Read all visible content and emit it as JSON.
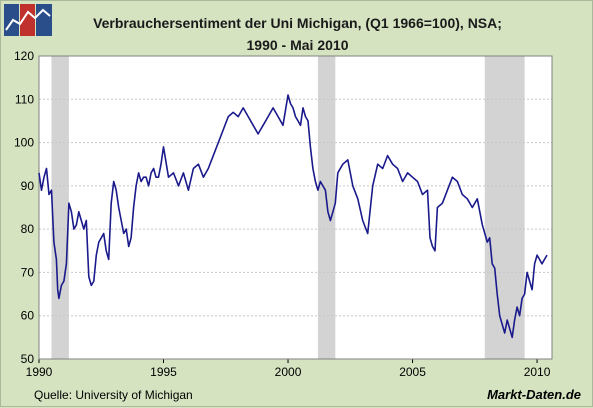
{
  "title_line1": "Verbrauchersentiment der Uni Michigan, (Q1 1966=100), NSA;",
  "title_line2": "1990 - Mai 2010",
  "source": "Quelle: University of Michigan",
  "brand": "Markt-Daten.de",
  "colors": {
    "background": "#d5e3c1",
    "plot_area": "#ffffff",
    "grid": "#c8c8c8",
    "line": "#1a1a8c",
    "recession": "#d3d3d3"
  },
  "chart_data": {
    "type": "line",
    "x_unit": "year",
    "xlim": [
      1990.0,
      2010.6
    ],
    "ylim": [
      50,
      120
    ],
    "x_ticks": [
      1990,
      1995,
      2000,
      2005,
      2010
    ],
    "x_tick_labels": [
      "1990",
      "1995",
      "2000",
      "2005",
      "2010"
    ],
    "y_ticks": [
      50,
      60,
      70,
      80,
      90,
      100,
      110,
      120
    ],
    "y_tick_labels": [
      "50",
      "60",
      "70",
      "80",
      "90",
      "100",
      "110",
      "120"
    ],
    "grid": true,
    "recessions": [
      [
        1990.5,
        1991.2
      ],
      [
        2001.2,
        2001.9
      ],
      [
        2007.9,
        2009.5
      ]
    ],
    "series": [
      {
        "x": [
          1990.0,
          1990.1,
          1990.2,
          1990.3,
          1990.4,
          1990.5,
          1990.6,
          1990.7,
          1990.75,
          1990.8,
          1990.9,
          1991.0,
          1991.1,
          1991.2,
          1991.3,
          1991.4,
          1991.5,
          1991.6,
          1991.7,
          1991.8,
          1991.9,
          1992.0,
          1992.1,
          1992.2,
          1992.3,
          1992.4,
          1992.5,
          1992.6,
          1992.7,
          1992.8,
          1992.9,
          1993.0,
          1993.1,
          1993.2,
          1993.3,
          1993.4,
          1993.5,
          1993.6,
          1993.7,
          1993.8,
          1993.9,
          1994.0,
          1994.1,
          1994.2,
          1994.3,
          1994.4,
          1994.5,
          1994.6,
          1994.7,
          1994.8,
          1994.9,
          1995.0,
          1995.2,
          1995.4,
          1995.6,
          1995.8,
          1996.0,
          1996.2,
          1996.4,
          1996.6,
          1996.8,
          1997.0,
          1997.2,
          1997.4,
          1997.6,
          1997.8,
          1998.0,
          1998.2,
          1998.4,
          1998.6,
          1998.8,
          1999.0,
          1999.2,
          1999.4,
          1999.6,
          1999.8,
          2000.0,
          2000.1,
          2000.2,
          2000.3,
          2000.4,
          2000.5,
          2000.6,
          2000.7,
          2000.8,
          2000.9,
          2001.0,
          2001.1,
          2001.2,
          2001.3,
          2001.4,
          2001.5,
          2001.6,
          2001.7,
          2001.8,
          2001.9,
          2002.0,
          2002.2,
          2002.4,
          2002.6,
          2002.8,
          2003.0,
          2003.2,
          2003.4,
          2003.6,
          2003.8,
          2004.0,
          2004.2,
          2004.4,
          2004.6,
          2004.8,
          2005.0,
          2005.2,
          2005.4,
          2005.6,
          2005.7,
          2005.8,
          2005.9,
          2006.0,
          2006.2,
          2006.4,
          2006.6,
          2006.8,
          2007.0,
          2007.2,
          2007.4,
          2007.6,
          2007.8,
          2008.0,
          2008.1,
          2008.2,
          2008.3,
          2008.4,
          2008.5,
          2008.6,
          2008.7,
          2008.8,
          2008.9,
          2009.0,
          2009.1,
          2009.2,
          2009.3,
          2009.4,
          2009.5,
          2009.6,
          2009.7,
          2009.8,
          2009.9,
          2010.0,
          2010.1,
          2010.2,
          2010.3,
          2010.4
        ],
        "y": [
          93,
          89,
          92,
          94,
          88,
          89,
          77,
          73,
          66,
          64,
          67,
          68,
          72,
          86,
          84,
          80,
          81,
          84,
          82,
          80,
          82,
          69,
          67,
          68,
          74,
          77,
          78,
          79,
          75,
          73,
          86,
          91,
          89,
          85,
          82,
          79,
          80,
          76,
          78,
          85,
          90,
          93,
          91,
          92,
          92,
          90,
          93,
          94,
          92,
          92,
          95,
          99,
          92,
          93,
          90,
          93,
          89,
          94,
          95,
          92,
          94,
          97,
          100,
          103,
          106,
          107,
          106,
          108,
          106,
          104,
          102,
          104,
          106,
          108,
          106,
          104,
          111,
          109,
          108,
          106,
          105,
          104,
          108,
          106,
          105,
          99,
          94,
          91,
          89,
          91,
          90,
          89,
          84,
          82,
          84,
          86,
          93,
          95,
          96,
          90,
          87,
          82,
          79,
          90,
          95,
          94,
          97,
          95,
          94,
          91,
          93,
          92,
          91,
          88,
          89,
          78,
          76,
          75,
          85,
          86,
          89,
          92,
          91,
          88,
          87,
          85,
          87,
          81,
          77,
          78,
          72,
          71,
          65,
          60,
          58,
          56,
          59,
          57,
          55,
          59,
          62,
          60,
          64,
          65,
          70,
          68,
          66,
          72,
          74,
          73,
          72,
          73,
          74
        ],
        "color": "#1a1a8c"
      }
    ]
  }
}
